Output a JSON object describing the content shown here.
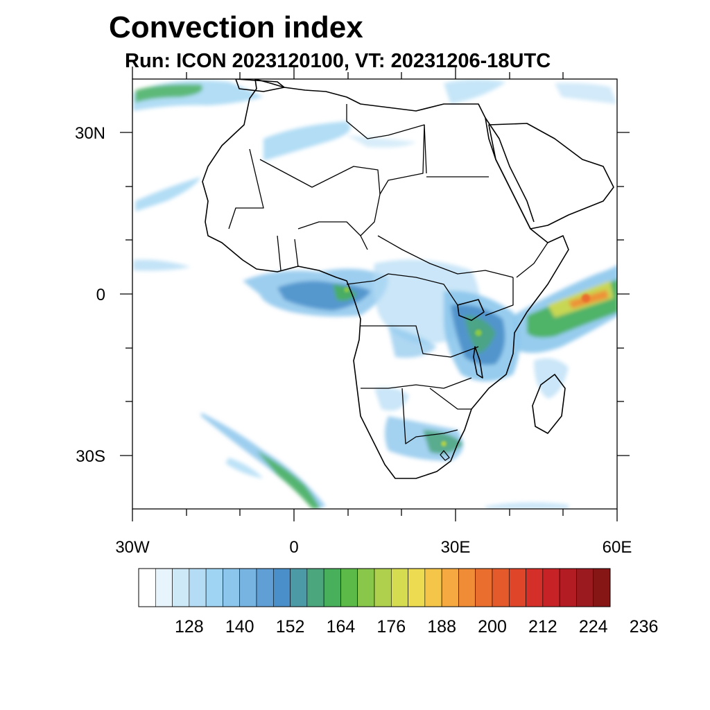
{
  "title": "Convection index",
  "subtitle": "Run: ICON 2023120100,  VT: 20231206-18UTC",
  "map": {
    "region": "Africa",
    "lon_range": [
      -30,
      60
    ],
    "lat_range": [
      -40,
      40
    ],
    "x_ticks": [
      {
        "lon": -30,
        "label": "30W"
      },
      {
        "lon": 0,
        "label": "0"
      },
      {
        "lon": 30,
        "label": "30E"
      },
      {
        "lon": 60,
        "label": "60E"
      }
    ],
    "y_ticks": [
      {
        "lat": 30,
        "label": "30N"
      },
      {
        "lat": 0,
        "label": "0"
      },
      {
        "lat": -30,
        "label": "30S"
      }
    ]
  },
  "colorbar": {
    "colors": [
      "#ffffff",
      "#e8f4fc",
      "#cde8f7",
      "#b4dcf5",
      "#9fd5f3",
      "#8cc6ec",
      "#78b4e2",
      "#5f9fd6",
      "#4a8fc9",
      "#4b9aa5",
      "#4ba67e",
      "#48b05a",
      "#5cbb48",
      "#88c74a",
      "#afd04c",
      "#d6dc50",
      "#eddc52",
      "#f4c548",
      "#f5a940",
      "#f18c36",
      "#ea6e2e",
      "#e55a2a",
      "#df4528",
      "#d42f28",
      "#c72326",
      "#b31c22",
      "#9b1a1f",
      "#861616"
    ],
    "labels": [
      "128",
      "140",
      "152",
      "164",
      "176",
      "188",
      "200",
      "212",
      "224",
      "236"
    ]
  },
  "data_summary": {
    "variable": "Convection index",
    "max_regions": [
      "Indian Ocean east of Kenya/Somalia",
      "Lake Victoria / Malawi area",
      "Gulf of Guinea / Congo basin",
      "South Atlantic band"
    ]
  }
}
